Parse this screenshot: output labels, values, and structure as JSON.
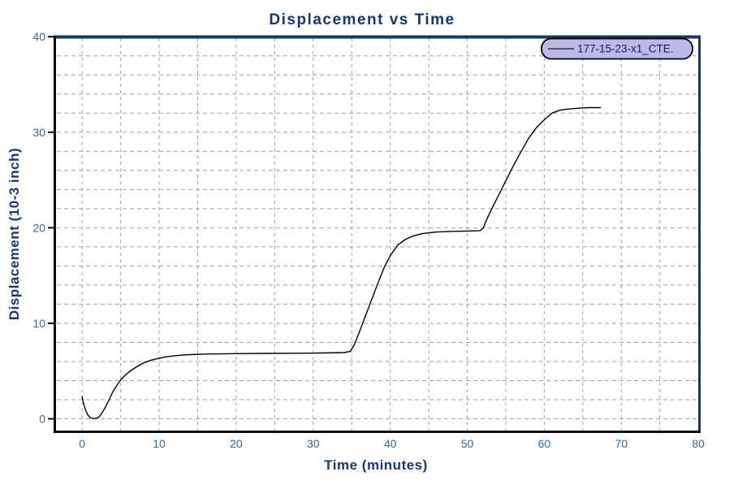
{
  "colors": {
    "title": "#17386e",
    "tick_label": "#3465a4",
    "grid": "#9aa2ac",
    "line": "#000000",
    "frame_top_right": "#17375e",
    "frame_left_bottom": "#0b0b0b",
    "legend_fill": "#bcb8e8",
    "legend_border": "#000000",
    "legend_text": "#1c1c52",
    "legend_line": "#2e2e5a"
  },
  "legend": {
    "label": "177-15-23-x1_CTE."
  },
  "chart_data": {
    "type": "line",
    "title": "Displacement vs Time",
    "xlabel": "Time (minutes)",
    "ylabel": "Displacement (10-3 inch)",
    "xlim": [
      -3.5,
      80.2
    ],
    "ylim": [
      -1.4,
      40.1
    ],
    "x_ticks": [
      0,
      10,
      20,
      30,
      40,
      50,
      60,
      70,
      80
    ],
    "y_ticks": [
      0,
      10,
      20,
      30,
      40
    ],
    "x_minor_grid_step": 5,
    "y_minor_grid_step": 2,
    "grid": "dashed",
    "legend_position": "top-right",
    "series": [
      {
        "name": "177-15-23-x1_CTE.",
        "points": [
          [
            0,
            2.3
          ],
          [
            0.2,
            1.55
          ],
          [
            0.45,
            0.9
          ],
          [
            0.7,
            0.45
          ],
          [
            1.0,
            0.15
          ],
          [
            1.3,
            0.05
          ],
          [
            1.7,
            0.04
          ],
          [
            2.1,
            0.12
          ],
          [
            2.5,
            0.5
          ],
          [
            3.0,
            1.2
          ],
          [
            3.5,
            2.0
          ],
          [
            4.0,
            2.85
          ],
          [
            4.5,
            3.5
          ],
          [
            5.0,
            4.05
          ],
          [
            5.5,
            4.5
          ],
          [
            6.0,
            4.85
          ],
          [
            6.5,
            5.15
          ],
          [
            7.0,
            5.4
          ],
          [
            7.5,
            5.65
          ],
          [
            8.0,
            5.85
          ],
          [
            9.0,
            6.15
          ],
          [
            10,
            6.35
          ],
          [
            11,
            6.5
          ],
          [
            12,
            6.6
          ],
          [
            13,
            6.67
          ],
          [
            14,
            6.72
          ],
          [
            16,
            6.78
          ],
          [
            18,
            6.8
          ],
          [
            20,
            6.82
          ],
          [
            24,
            6.85
          ],
          [
            28,
            6.87
          ],
          [
            31,
            6.89
          ],
          [
            34,
            6.93
          ],
          [
            34.8,
            7.05
          ],
          [
            35.3,
            7.7
          ],
          [
            36.0,
            9.1
          ],
          [
            36.8,
            10.8
          ],
          [
            37.6,
            12.5
          ],
          [
            38.5,
            14.4
          ],
          [
            39.3,
            16.0
          ],
          [
            40.1,
            17.2
          ],
          [
            41.0,
            18.2
          ],
          [
            42.0,
            18.8
          ],
          [
            43.0,
            19.15
          ],
          [
            44.2,
            19.4
          ],
          [
            46,
            19.55
          ],
          [
            48,
            19.62
          ],
          [
            50,
            19.66
          ],
          [
            51.7,
            19.7
          ],
          [
            52.1,
            20.0
          ],
          [
            52.5,
            20.8
          ],
          [
            53.0,
            21.7
          ],
          [
            54.0,
            23.3
          ],
          [
            55.0,
            24.9
          ],
          [
            56.0,
            26.5
          ],
          [
            57.0,
            28.0
          ],
          [
            58.0,
            29.4
          ],
          [
            59.0,
            30.5
          ],
          [
            60.0,
            31.3
          ],
          [
            61.0,
            32.0
          ],
          [
            62.0,
            32.3
          ],
          [
            63.0,
            32.42
          ],
          [
            64.0,
            32.48
          ],
          [
            65.0,
            32.55
          ],
          [
            66.0,
            32.57
          ],
          [
            67.3,
            32.57
          ]
        ]
      }
    ]
  }
}
